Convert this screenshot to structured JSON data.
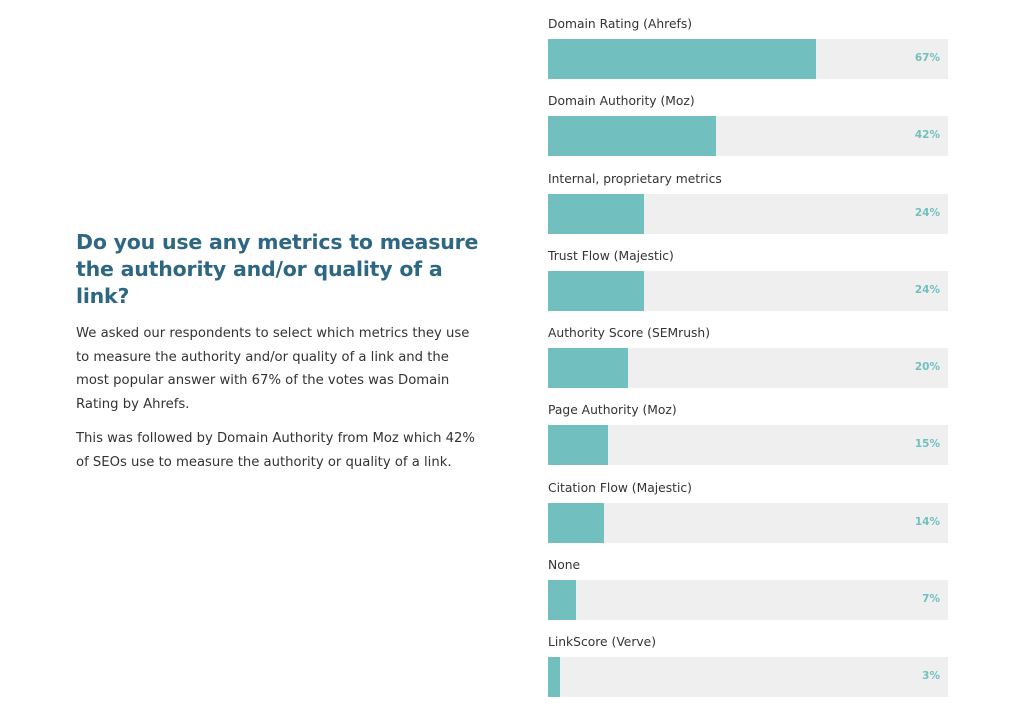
{
  "article": {
    "heading": "Do you use any metrics to measure the authority and/or quality of a link?",
    "paragraph1": "We asked our respondents to select which metrics they use to measure the authority and/or quality of a link and the most popular answer with 67% of the votes was Domain Rating by Ahrefs.",
    "paragraph2": "This was followed by Domain Authority from Moz which 42% of SEOs use to measure the authority or quality of a link."
  },
  "colors": {
    "bar": "#72bfbf",
    "track": "#efefef",
    "heading": "#2e6783"
  },
  "chart_data": {
    "type": "bar",
    "orientation": "horizontal",
    "categories": [
      "Domain Rating (Ahrefs)",
      "Domain Authority (Moz)",
      "Internal, proprietary metrics",
      "Trust Flow (Majestic)",
      "Authority Score (SEMrush)",
      "Page Authority (Moz)",
      "Citation Flow (Majestic)",
      "None",
      "LinkScore (Verve)"
    ],
    "values": [
      67,
      42,
      24,
      24,
      20,
      15,
      14,
      7,
      3
    ],
    "value_labels": [
      "67%",
      "42%",
      "24%",
      "24%",
      "20%",
      "15%",
      "14%",
      "7%",
      "3%"
    ],
    "xlim": [
      0,
      100
    ],
    "grid": false
  }
}
